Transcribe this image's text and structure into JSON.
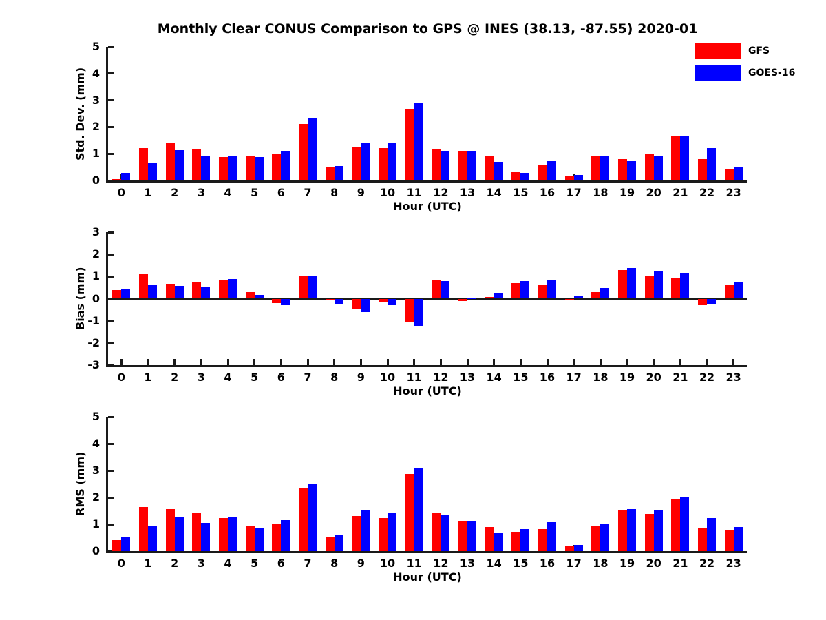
{
  "title": "Monthly Clear CONUS Comparison to GPS @ INES (38.13, -87.55) 2020-01",
  "colors": {
    "gfs": "#ff0000",
    "goes16": "#0000ff",
    "axis": "#1a1a1a",
    "text": "#000000",
    "background": "#ffffff"
  },
  "legend": {
    "position": "top-right",
    "items": [
      {
        "label": "GFS",
        "color": "#ff0000"
      },
      {
        "label": "GOES-16",
        "color": "#0000ff"
      }
    ]
  },
  "chart_data": [
    {
      "type": "bar",
      "title": "Monthly Clear CONUS Comparison to GPS @ INES (38.13, -87.55) 2020-01",
      "ylabel": "Std. Dev. (mm)",
      "xlabel": "Hour (UTC)",
      "ylim": [
        0,
        5
      ],
      "yticks": [
        0,
        1,
        2,
        3,
        4,
        5
      ],
      "grid": false,
      "categories": [
        "0",
        "1",
        "2",
        "3",
        "4",
        "5",
        "6",
        "7",
        "8",
        "9",
        "10",
        "11",
        "12",
        "13",
        "14",
        "15",
        "16",
        "17",
        "18",
        "19",
        "20",
        "21",
        "22",
        "23"
      ],
      "series": [
        {
          "name": "GFS",
          "color": "#ff0000",
          "values": [
            0.05,
            1.22,
            1.4,
            1.19,
            0.87,
            0.91,
            1.0,
            2.12,
            0.5,
            1.25,
            1.2,
            2.68,
            1.18,
            1.1,
            0.92,
            0.3,
            0.58,
            0.17,
            0.91,
            0.8,
            0.97,
            1.65,
            0.8,
            0.45
          ]
        },
        {
          "name": "GOES-16",
          "color": "#0000ff",
          "values": [
            0.29,
            0.66,
            1.13,
            0.9,
            0.9,
            0.88,
            1.1,
            2.31,
            0.55,
            1.4,
            1.4,
            2.9,
            1.1,
            1.11,
            0.69,
            0.28,
            0.71,
            0.2,
            0.89,
            0.75,
            0.91,
            1.68,
            1.21,
            0.49
          ]
        }
      ]
    },
    {
      "type": "bar",
      "title": "",
      "ylabel": "Bias (mm)",
      "xlabel": "Hour (UTC)",
      "ylim": [
        -3,
        3
      ],
      "yticks": [
        3,
        2,
        1,
        0,
        -1,
        -2,
        -3
      ],
      "grid": false,
      "categories": [
        "0",
        "1",
        "2",
        "3",
        "4",
        "5",
        "6",
        "7",
        "8",
        "9",
        "10",
        "11",
        "12",
        "13",
        "14",
        "15",
        "16",
        "17",
        "18",
        "19",
        "20",
        "21",
        "22",
        "23"
      ],
      "series": [
        {
          "name": "GFS",
          "color": "#ff0000",
          "values": [
            0.4,
            1.09,
            0.68,
            0.72,
            0.85,
            0.28,
            -0.2,
            1.03,
            -0.03,
            -0.45,
            -0.15,
            -1.05,
            0.82,
            -0.1,
            0.08,
            0.7,
            0.6,
            -0.08,
            0.3,
            1.28,
            1.0,
            0.95,
            -0.28,
            0.62
          ]
        },
        {
          "name": "GOES-16",
          "color": "#0000ff",
          "values": [
            0.44,
            0.63,
            0.57,
            0.53,
            0.88,
            0.17,
            -0.3,
            1.0,
            -0.22,
            -0.6,
            -0.3,
            -1.22,
            0.78,
            0.03,
            0.22,
            0.78,
            0.82,
            0.15,
            0.48,
            1.38,
            1.22,
            1.15,
            -0.22,
            0.72
          ]
        }
      ]
    },
    {
      "type": "bar",
      "title": "",
      "ylabel": "RMS (mm)",
      "xlabel": "Hour (UTC)",
      "ylim": [
        0,
        5
      ],
      "yticks": [
        0,
        1,
        2,
        3,
        4,
        5
      ],
      "grid": false,
      "categories": [
        "0",
        "1",
        "2",
        "3",
        "4",
        "5",
        "6",
        "7",
        "8",
        "9",
        "10",
        "11",
        "12",
        "13",
        "14",
        "15",
        "16",
        "17",
        "18",
        "19",
        "20",
        "21",
        "22",
        "23"
      ],
      "series": [
        {
          "name": "GFS",
          "color": "#ff0000",
          "values": [
            0.42,
            1.64,
            1.57,
            1.4,
            1.22,
            0.93,
            1.03,
            2.37,
            0.52,
            1.32,
            1.22,
            2.88,
            1.43,
            1.12,
            0.91,
            0.73,
            0.83,
            0.2,
            0.95,
            1.52,
            1.38,
            1.92,
            0.86,
            0.77
          ]
        },
        {
          "name": "GOES-16",
          "color": "#0000ff",
          "values": [
            0.55,
            0.93,
            1.27,
            1.06,
            1.27,
            0.88,
            1.16,
            2.5,
            0.6,
            1.52,
            1.42,
            3.1,
            1.35,
            1.13,
            0.7,
            0.83,
            1.08,
            0.22,
            1.03,
            1.57,
            1.51,
            2.01,
            1.24,
            0.89
          ]
        }
      ]
    }
  ]
}
